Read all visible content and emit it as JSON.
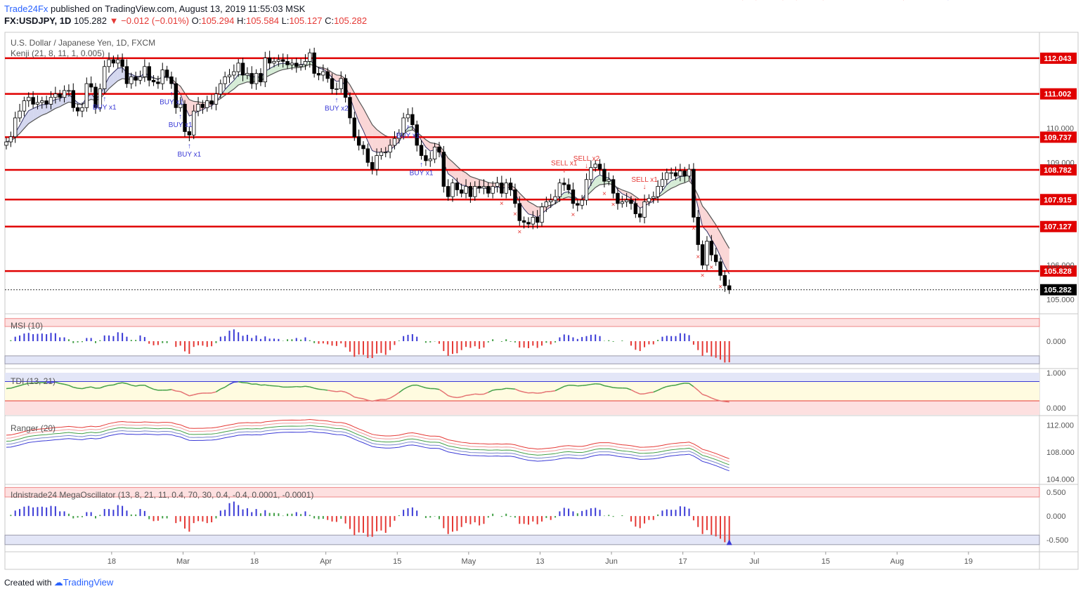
{
  "header": {
    "publisher": "Trade24Fx",
    "published_text": "published on TradingView.com, August 13, 2019 11:55:03 MSK",
    "symbol": "FX:USDJPY, 1D",
    "price": "105.282",
    "change": "−0.012 (−0.01%)",
    "o_label": "O:",
    "o": "105.294",
    "h_label": "H:",
    "h": "105.584",
    "l_label": "L:",
    "l": "105.127",
    "c_label": "C:",
    "c": "105.282"
  },
  "footer": {
    "created_with": "Created with",
    "brand": "TradingView"
  },
  "colors": {
    "level_line": "#e00000",
    "bull": "#ffffff",
    "bear": "#000000",
    "buy": "#3a3ad6",
    "sell": "#e53935",
    "cloud_bull": "#c8e6c9",
    "cloud_bear": "#f8c8c8",
    "band_blue": "#c5cae9",
    "osc_green": "#43a047"
  },
  "chart_data": [
    {
      "type": "candlestick",
      "title": "U.S. Dollar / Japanese Yen, 1D, FXCM",
      "indicator": "Kenji (21, 8, 11, 1, 0.005)",
      "x_tick_labels": [
        "18",
        "Mar",
        "18",
        "Apr",
        "15",
        "May",
        "13",
        "Jun",
        "17",
        "Jul",
        "15",
        "Aug",
        "19"
      ],
      "y_tick_labels": [
        "105.000",
        "106.000",
        "109.000",
        "110.000"
      ],
      "ylim": [
        104.6,
        112.8
      ],
      "levels": [
        112.043,
        111.002,
        109.737,
        108.782,
        107.915,
        107.127,
        105.828
      ],
      "last_price": 105.282,
      "close": [
        109.6,
        109.75,
        110.3,
        110.5,
        110.8,
        110.9,
        110.7,
        110.75,
        110.8,
        110.7,
        110.9,
        111.0,
        110.9,
        111.1,
        111.1,
        110.6,
        110.5,
        110.6,
        111.3,
        111.2,
        110.6,
        111.15,
        111.8,
        112.0,
        111.9,
        112.0,
        111.8,
        111.3,
        111.5,
        111.4,
        111.5,
        111.8,
        111.4,
        111.35,
        111.3,
        111.7,
        111.5,
        111.3,
        110.6,
        110.7,
        109.9,
        109.8,
        110.5,
        110.7,
        110.6,
        110.8,
        110.7,
        111.0,
        111.3,
        111.5,
        111.55,
        111.65,
        111.9,
        111.55,
        111.6,
        111.3,
        111.6,
        111.35,
        112.05,
        111.9,
        111.95,
        112.0,
        111.95,
        111.85,
        111.9,
        111.8,
        111.85,
        111.95,
        112.2,
        111.6,
        111.55,
        111.65,
        111.45,
        111.15,
        111.15,
        111.45,
        110.9,
        110.3,
        109.75,
        109.5,
        109.4,
        109.0,
        108.8,
        109.2,
        109.3,
        109.3,
        109.5,
        109.7,
        109.85,
        110.3,
        110.4,
        110.1,
        109.5,
        109.2,
        109.05,
        109.1,
        109.45,
        109.3,
        108.3,
        108.0,
        108.4,
        108.2,
        108.1,
        108.3,
        108.0,
        108.3,
        108.25,
        108.3,
        108.1,
        108.3,
        108.4,
        108.1,
        108.4,
        108.2,
        107.8,
        107.3,
        107.25,
        107.2,
        107.4,
        107.25,
        107.7,
        107.85,
        107.9,
        108.0,
        108.4,
        108.35,
        108.2,
        107.8,
        107.75,
        107.9,
        108.5,
        108.85,
        108.95,
        108.8,
        108.45,
        108.5,
        108.1,
        107.8,
        107.85,
        107.9,
        107.8,
        107.5,
        107.4,
        107.85,
        107.95,
        108.0,
        108.3,
        108.5,
        108.7,
        108.7,
        108.6,
        108.75,
        108.6,
        108.8,
        107.4,
        106.6,
        106.0,
        106.7,
        106.3,
        106.1,
        105.7,
        105.4,
        105.28
      ]
    },
    {
      "type": "bar",
      "title": "MSI (10)",
      "y_tick_labels": [
        "0.000"
      ],
      "ylim": [
        -1,
        1
      ]
    },
    {
      "type": "line",
      "title": "TDI (13, 21)",
      "y_tick_labels": [
        "1.000",
        "0.000"
      ],
      "ylim": [
        -0.2,
        1.1
      ]
    },
    {
      "type": "line",
      "title": "Ranger (20)",
      "y_tick_labels": [
        "112.000",
        "108.000",
        "104.000"
      ],
      "ylim": [
        103.3,
        113.3
      ]
    },
    {
      "type": "bar",
      "title": "Idnistrade24 MegaOscillator (13, 8, 21, 11, 0.4, 70, 30, 0.4, -0.4, 0.0001, -0.0001)",
      "y_tick_labels": [
        "0.500",
        "0.000",
        "-0.500"
      ],
      "ylim": [
        -0.75,
        0.65
      ]
    }
  ],
  "signals": {
    "buy": [
      {
        "text": "BUY x1",
        "i": 22
      },
      {
        "text": "BUY x1",
        "i": 37
      },
      {
        "text": "BUY x1",
        "i": 39
      },
      {
        "text": "BUY x1",
        "i": 41
      },
      {
        "text": "BUY x2",
        "i": 74
      },
      {
        "text": "BUY x1",
        "i": 90
      },
      {
        "text": "BUY x1",
        "i": 93
      },
      {
        "text": "BUY x1",
        "i": 211
      }
    ],
    "sell": [
      {
        "text": "SELL x1",
        "i": 125
      },
      {
        "text": "SELL x2",
        "i": 130
      },
      {
        "text": "SELL x1",
        "i": 143
      },
      {
        "text": "SELL x1",
        "i": 165
      },
      {
        "text": "SELL x1",
        "i": 168
      },
      {
        "text": "SELL x1",
        "i": 174
      },
      {
        "text": "SELL",
        "i": 177
      },
      {
        "text": "SELL x2",
        "i": 183
      },
      {
        "text": "SELL x2",
        "i": 201
      }
    ]
  }
}
